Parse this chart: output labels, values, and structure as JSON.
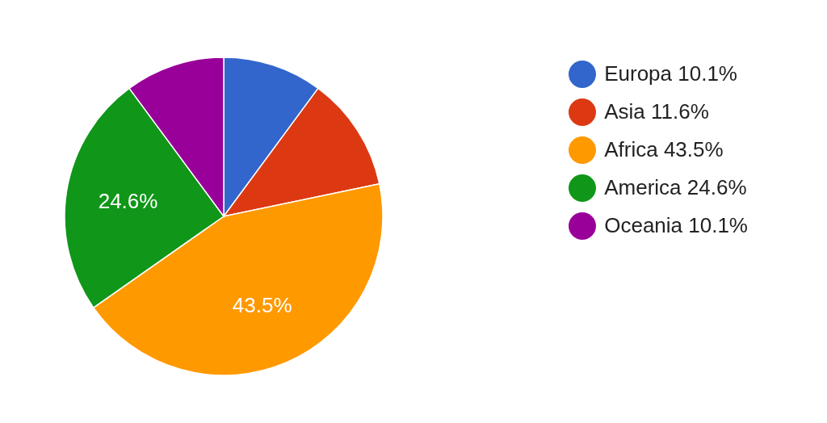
{
  "chart_data": {
    "type": "pie",
    "categories": [
      "Europa 10.1%",
      "Asia 11.6%",
      "Africa 43.5%",
      "America 24.6%",
      "Oceania 10.1%"
    ],
    "values": [
      10.1,
      11.6,
      43.5,
      24.6,
      10.1
    ],
    "colors": [
      "#3366cc",
      "#dc3912",
      "#ff9900",
      "#109618",
      "#990099"
    ],
    "value_labels": [
      null,
      null,
      "43.5%",
      "24.6%",
      null
    ],
    "legend": "right"
  }
}
